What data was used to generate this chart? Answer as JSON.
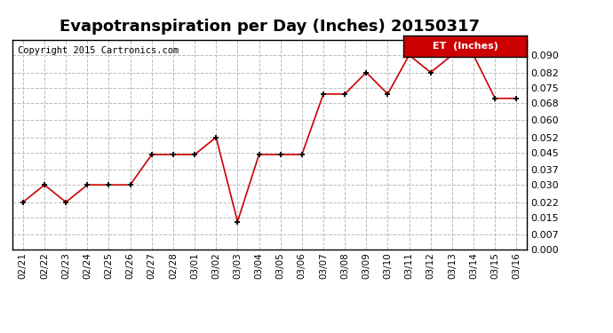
{
  "title": "Evapotranspiration per Day (Inches) 20150317",
  "copyright_text": "Copyright 2015 Cartronics.com",
  "legend_label": "ET  (Inches)",
  "dates": [
    "02/21",
    "02/22",
    "02/23",
    "02/24",
    "02/25",
    "02/26",
    "02/27",
    "02/28",
    "03/01",
    "03/02",
    "03/03",
    "03/04",
    "03/05",
    "03/06",
    "03/07",
    "03/08",
    "03/09",
    "03/10",
    "03/11",
    "03/12",
    "03/13",
    "03/14",
    "03/15",
    "03/16"
  ],
  "values": [
    0.022,
    0.03,
    0.022,
    0.03,
    0.03,
    0.03,
    0.044,
    0.044,
    0.044,
    0.052,
    0.013,
    0.044,
    0.044,
    0.044,
    0.072,
    0.072,
    0.082,
    0.072,
    0.09,
    0.082,
    0.09,
    0.09,
    0.07,
    0.07
  ],
  "line_color": "#cc0000",
  "marker_color": "#000000",
  "background_color": "#ffffff",
  "grid_color": "#bbbbbb",
  "ylim": [
    0.0,
    0.097
  ],
  "yticks": [
    0.0,
    0.007,
    0.015,
    0.022,
    0.03,
    0.037,
    0.045,
    0.052,
    0.06,
    0.068,
    0.075,
    0.082,
    0.09
  ],
  "title_fontsize": 13,
  "legend_bg_color": "#cc0000",
  "legend_text_color": "#ffffff",
  "copyright_fontsize": 7.5
}
